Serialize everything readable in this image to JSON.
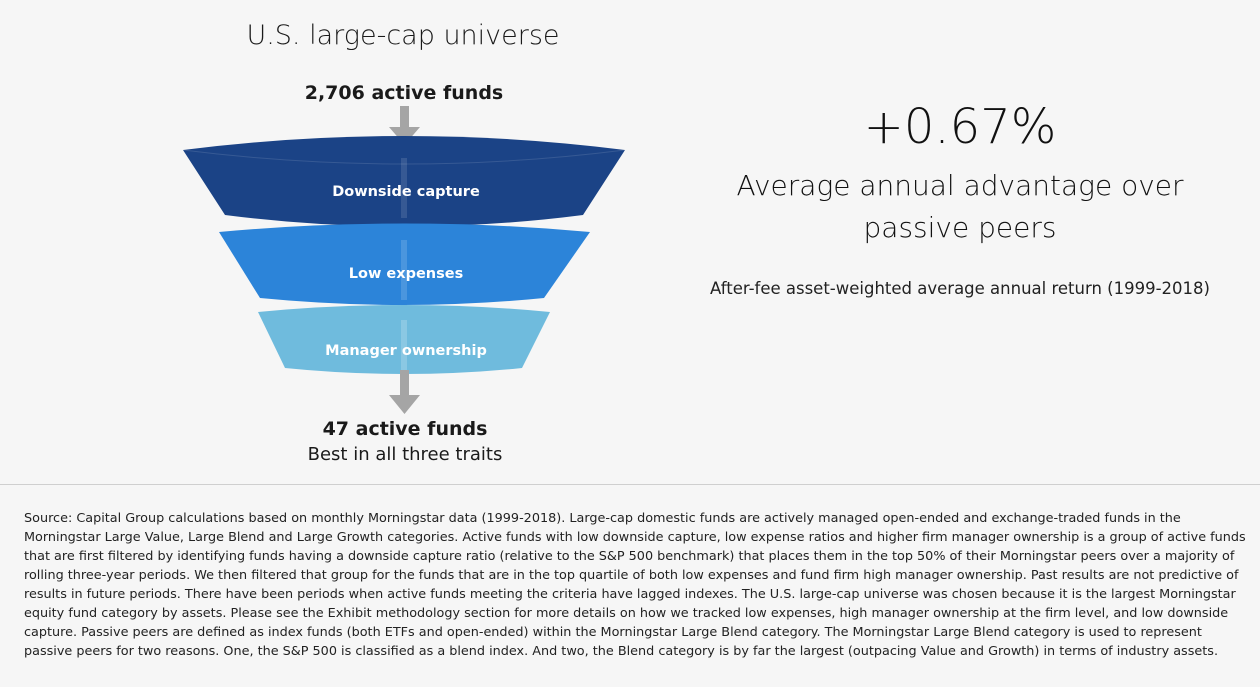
{
  "funnel": {
    "title": "U.S. large-cap universe",
    "start_label": "2,706 active funds",
    "stages": [
      {
        "label": "Downside capture",
        "color": "#1b4386"
      },
      {
        "label": "Low expenses",
        "color": "#2c84d9"
      },
      {
        "label": "Manager ownership",
        "color": "#6fbbdd"
      }
    ],
    "end_label": "47 active funds",
    "end_sublabel": "Best in all three traits",
    "arrow_color": "#a5a5a5"
  },
  "stat": {
    "value": "+0.67%",
    "label_line1": "Average annual advantage over",
    "label_line2": "passive peers",
    "note": "After-fee asset-weighted average annual return (1999-2018)"
  },
  "source": {
    "text": "Source: Capital Group calculations based on monthly Morningstar data (1999-2018). Large-cap domestic funds are actively managed open-ended and exchange-traded funds in the Morningstar Large Value, Large Blend and Large Growth categories. Active funds with low downside capture, low expense ratios and higher firm manager ownership is a group of active funds that are first filtered by identifying funds having a downside capture ratio (relative to the S&P 500 benchmark) that places them in the top 50% of their Morningstar peers over a majority of rolling three-year periods. We then filtered that group for the funds that are in the top quartile of both low expenses and fund firm high manager ownership. Past results are not predictive of results in future periods. There have been periods when active funds meeting the criteria have lagged indexes. The U.S. large-cap universe was chosen because it is the largest Morningstar equity fund category by assets. Please see the Exhibit methodology section for more details on how we tracked low expenses, high manager ownership at the firm level, and low downside capture. Passive peers are defined as index funds (both ETFs and open-ended) within the Morningstar Large Blend category. The Morningstar Large Blend category is used to represent passive peers for two reasons. One, the S&P 500 is classified as a blend index. And two, the Blend category is by far the largest (outpacing Value and Growth) in terms of industry assets."
  }
}
